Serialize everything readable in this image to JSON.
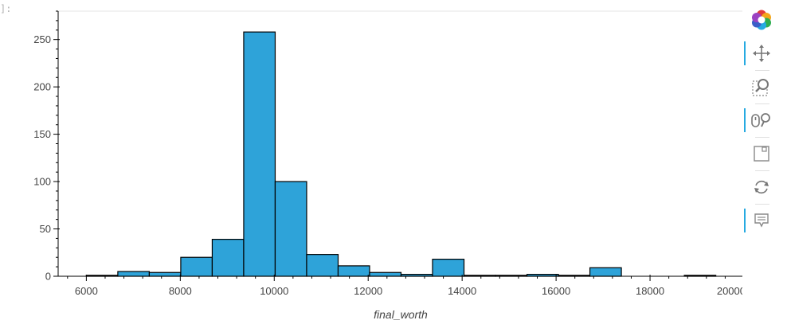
{
  "prompt_marker": "]:",
  "toolbar": {
    "logo": "bokeh-logo-icon",
    "tools": [
      {
        "name": "pan-tool",
        "icon": "move-arrows-icon",
        "active": true
      },
      {
        "name": "box-zoom-tool",
        "icon": "box-zoom-icon",
        "active": false
      },
      {
        "name": "wheel-zoom-tool",
        "icon": "wheel-zoom-icon",
        "active": true
      },
      {
        "name": "save-tool",
        "icon": "save-icon",
        "active": false
      },
      {
        "name": "reset-tool",
        "icon": "reset-icon",
        "active": false
      },
      {
        "name": "hover-tool",
        "icon": "hover-comment-icon",
        "active": true
      }
    ]
  },
  "colors": {
    "bar_fill": "#2ea3d9",
    "bar_stroke": "#000000",
    "axis": "#000000",
    "accent": "#26aae1"
  },
  "chart_data": {
    "type": "bar",
    "title": "",
    "xlabel": "final_worth",
    "ylabel": "",
    "xlim": [
      5400,
      20000
    ],
    "ylim": [
      0,
      280
    ],
    "x_ticks": [
      6000,
      8000,
      10000,
      12000,
      14000,
      16000,
      18000,
      20000
    ],
    "y_ticks": [
      0,
      50,
      100,
      150,
      200,
      250
    ],
    "grid": false,
    "bins": [
      {
        "x0": 6000,
        "x1": 6670,
        "count": 1
      },
      {
        "x0": 6670,
        "x1": 7340,
        "count": 5
      },
      {
        "x0": 7340,
        "x1": 8010,
        "count": 4
      },
      {
        "x0": 8010,
        "x1": 8680,
        "count": 20
      },
      {
        "x0": 8680,
        "x1": 9350,
        "count": 39
      },
      {
        "x0": 9350,
        "x1": 10020,
        "count": 258
      },
      {
        "x0": 10020,
        "x1": 10690,
        "count": 100
      },
      {
        "x0": 10690,
        "x1": 11360,
        "count": 23
      },
      {
        "x0": 11360,
        "x1": 12030,
        "count": 11
      },
      {
        "x0": 12030,
        "x1": 12700,
        "count": 4
      },
      {
        "x0": 12700,
        "x1": 13370,
        "count": 2
      },
      {
        "x0": 13370,
        "x1": 14040,
        "count": 18
      },
      {
        "x0": 14040,
        "x1": 14710,
        "count": 1
      },
      {
        "x0": 14710,
        "x1": 15380,
        "count": 1
      },
      {
        "x0": 15380,
        "x1": 16050,
        "count": 2
      },
      {
        "x0": 16050,
        "x1": 16720,
        "count": 1
      },
      {
        "x0": 16720,
        "x1": 17390,
        "count": 9
      },
      {
        "x0": 17390,
        "x1": 18060,
        "count": 0
      },
      {
        "x0": 18060,
        "x1": 18730,
        "count": 0
      },
      {
        "x0": 18730,
        "x1": 19400,
        "count": 1
      }
    ]
  }
}
